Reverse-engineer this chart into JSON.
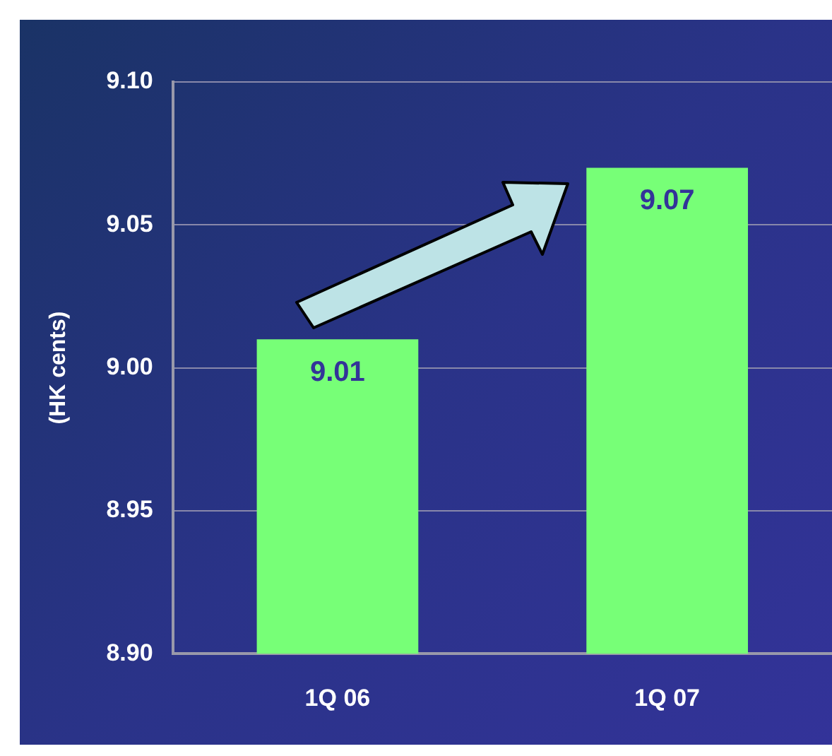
{
  "chart_data": {
    "type": "bar",
    "ylabel": "(HK cents)",
    "categories": [
      "1Q 06",
      "1Q 07"
    ],
    "values": [
      9.01,
      9.07
    ],
    "color": "#77ff77",
    "ylim": [
      8.9,
      9.1
    ],
    "yticks": [
      {
        "value": 8.9,
        "label": "8.90"
      },
      {
        "value": 8.95,
        "label": "8.95"
      },
      {
        "value": 9.0,
        "label": "9.00"
      },
      {
        "value": 9.05,
        "label": "9.05"
      },
      {
        "value": 9.1,
        "label": "9.10"
      }
    ],
    "grid": "y",
    "data_labels": true
  }
}
